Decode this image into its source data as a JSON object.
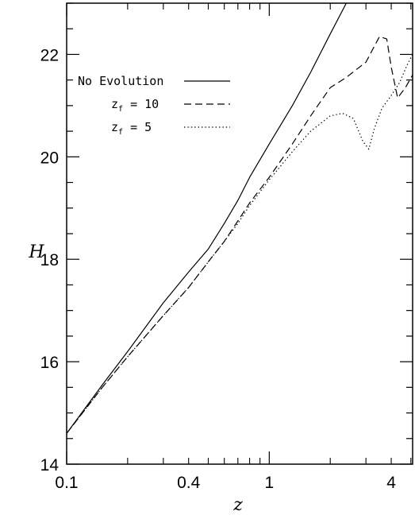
{
  "chart_data": {
    "type": "line",
    "title": "",
    "xlabel": "z",
    "ylabel": "H",
    "xscale": "log",
    "xlim": [
      0.1,
      5.1
    ],
    "ylim": [
      14,
      23
    ],
    "grid": false,
    "legend_position": "upper-left",
    "x_tick_labels": [
      {
        "value": 0.1,
        "label": "0.1"
      },
      {
        "value": 0.4,
        "label": "0.4"
      },
      {
        "value": 1,
        "label": "1"
      },
      {
        "value": 4,
        "label": "4"
      }
    ],
    "y_tick_labels": [
      {
        "value": 14,
        "label": "14"
      },
      {
        "value": 16,
        "label": "16"
      },
      {
        "value": 18,
        "label": "18"
      },
      {
        "value": 20,
        "label": "20"
      },
      {
        "value": 22,
        "label": "22"
      }
    ],
    "series": [
      {
        "name": "No Evolution",
        "legend_main": "No Evolution",
        "legend_sub": "",
        "style": "solid",
        "x": [
          0.1,
          0.15,
          0.2,
          0.3,
          0.4,
          0.5,
          0.6,
          0.7,
          0.8,
          1.0,
          1.3,
          1.6,
          2.0,
          2.4
        ],
        "y": [
          14.6,
          15.55,
          16.2,
          17.15,
          17.75,
          18.2,
          18.7,
          19.15,
          19.6,
          20.25,
          21.0,
          21.65,
          22.4,
          23.0
        ]
      },
      {
        "name": "z_f = 10",
        "legend_main": "z",
        "legend_sub": "f",
        "legend_tail": " = 10",
        "style": "dashed",
        "x": [
          0.1,
          0.15,
          0.2,
          0.3,
          0.4,
          0.5,
          0.6,
          0.7,
          0.8,
          1.0,
          1.3,
          1.6,
          2.0,
          2.4,
          3.0,
          3.5,
          3.8,
          4.0,
          4.3,
          4.7,
          5.1
        ],
        "y": [
          14.6,
          15.5,
          16.1,
          16.9,
          17.45,
          17.95,
          18.35,
          18.75,
          19.1,
          19.6,
          20.25,
          20.8,
          21.35,
          21.55,
          21.85,
          22.35,
          22.3,
          21.75,
          21.15,
          21.35,
          21.6
        ]
      },
      {
        "name": "z_f = 5",
        "legend_main": "z",
        "legend_sub": "f",
        "legend_tail": " =  5",
        "style": "dotted",
        "x": [
          0.1,
          0.15,
          0.2,
          0.3,
          0.4,
          0.5,
          0.6,
          0.7,
          0.8,
          1.0,
          1.3,
          1.6,
          2.0,
          2.3,
          2.6,
          2.9,
          3.1,
          3.3,
          3.6,
          4.0,
          4.4,
          4.8,
          5.1
        ],
        "y": [
          14.6,
          15.5,
          16.1,
          16.9,
          17.45,
          17.95,
          18.35,
          18.7,
          19.05,
          19.55,
          20.1,
          20.5,
          20.8,
          20.85,
          20.75,
          20.3,
          20.15,
          20.55,
          20.95,
          21.2,
          21.45,
          21.8,
          22.0
        ]
      }
    ]
  }
}
